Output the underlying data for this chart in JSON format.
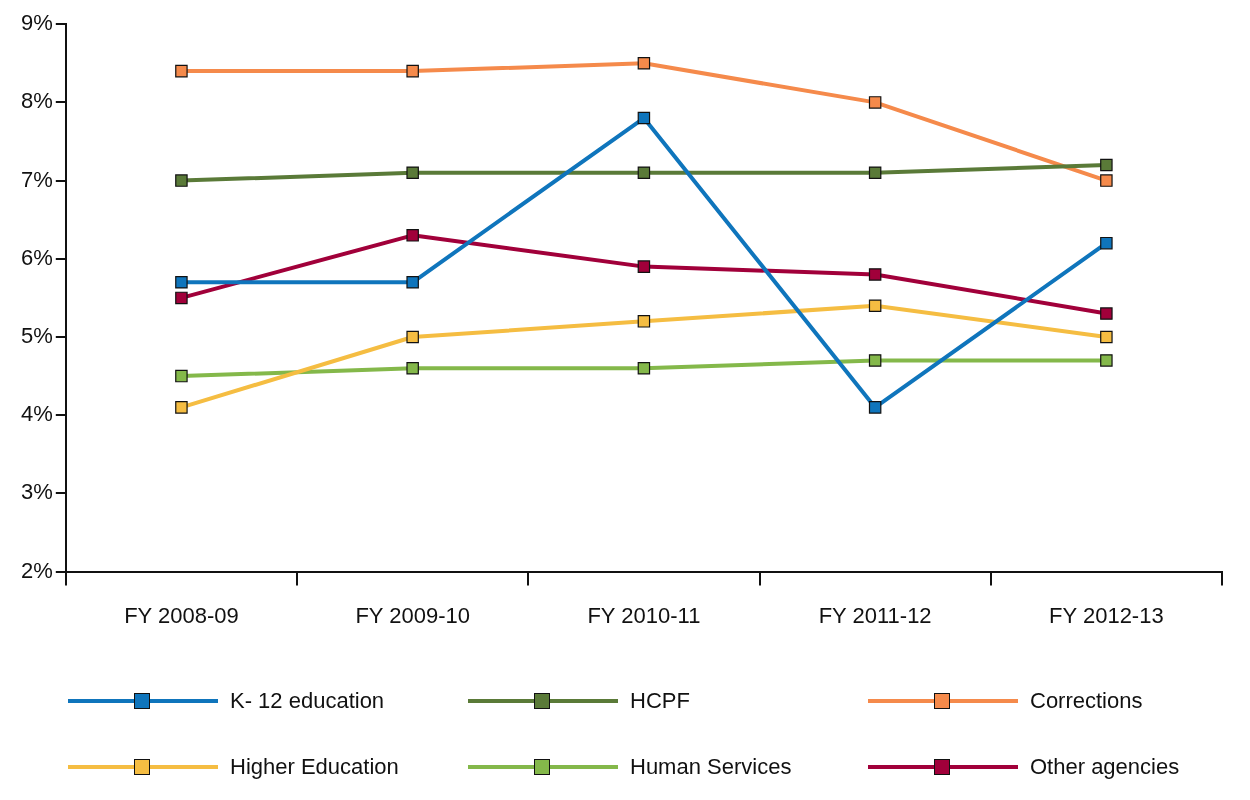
{
  "chart_data": {
    "type": "line",
    "categories": [
      "FY 2008-09",
      "FY 2009-10",
      "FY 2010-11",
      "FY 2011-12",
      "FY 2012-13"
    ],
    "series": [
      {
        "name": "K- 12 education",
        "color": "#0f75bc",
        "values": [
          5.7,
          5.7,
          7.8,
          4.1,
          6.2
        ]
      },
      {
        "name": "HCPF",
        "color": "#5a7a38",
        "values": [
          7.0,
          7.1,
          7.1,
          7.1,
          7.2
        ]
      },
      {
        "name": "Corrections",
        "color": "#f58a4b",
        "values": [
          8.4,
          8.4,
          8.5,
          8.0,
          7.0
        ]
      },
      {
        "name": "Higher Education",
        "color": "#f5bd42",
        "values": [
          4.1,
          5.0,
          5.2,
          5.4,
          5.0
        ]
      },
      {
        "name": "Human Services",
        "color": "#84b84a",
        "values": [
          4.5,
          4.6,
          4.6,
          4.7,
          4.7
        ]
      },
      {
        "name": "Other agencies",
        "color": "#a1003a",
        "values": [
          5.5,
          6.3,
          5.9,
          5.8,
          5.3
        ]
      }
    ],
    "ylim": [
      2,
      9
    ],
    "yticks": [
      {
        "value": 2,
        "label": "2%"
      },
      {
        "value": 3,
        "label": "3%"
      },
      {
        "value": 4,
        "label": "4%"
      },
      {
        "value": 5,
        "label": "5%"
      },
      {
        "value": 6,
        "label": "6%"
      },
      {
        "value": 7,
        "label": "7%"
      },
      {
        "value": 8,
        "label": "8%"
      },
      {
        "value": 9,
        "label": "9%"
      }
    ],
    "grid": false,
    "legend": "bottom",
    "marker": "square",
    "line_style": "solid"
  }
}
